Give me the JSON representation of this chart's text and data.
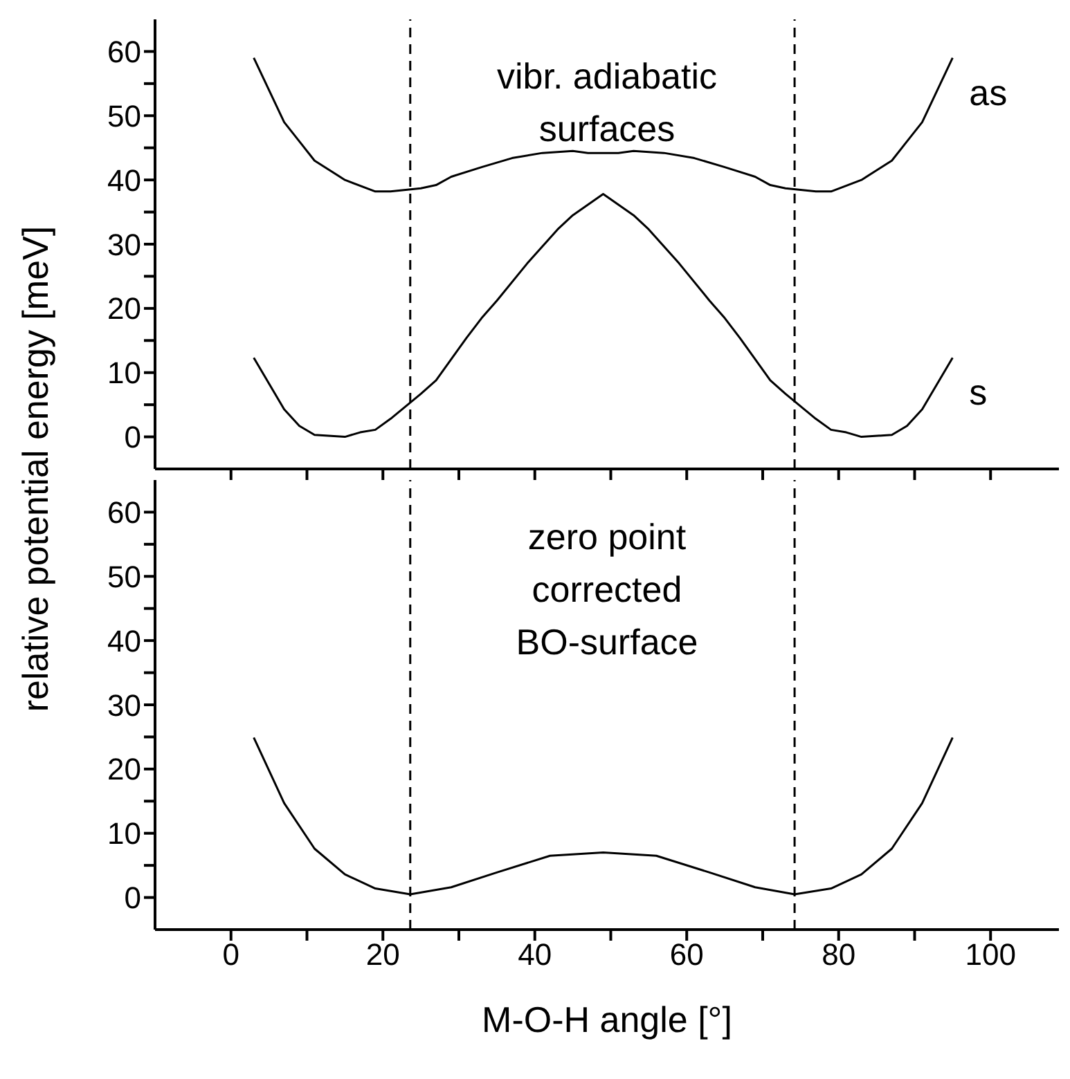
{
  "chart_data": [
    {
      "type": "line",
      "ylabel": "relative potential energy [meV]",
      "annotations": [
        "vibr. adiabatic surfaces"
      ],
      "xlim": [
        -10,
        109
      ],
      "ylim": [
        -5,
        65
      ],
      "xticks": [
        {
          "value": 0,
          "label": null
        },
        {
          "value": 10,
          "label": null
        },
        {
          "value": 20,
          "label": null
        },
        {
          "value": 30,
          "label": null
        },
        {
          "value": 40,
          "label": null
        },
        {
          "value": 50,
          "label": null
        },
        {
          "value": 60,
          "label": null
        },
        {
          "value": 70,
          "label": null
        },
        {
          "value": 80,
          "label": null
        },
        {
          "value": 90,
          "label": null
        },
        {
          "value": 100,
          "label": null
        }
      ],
      "yticks": [
        0,
        {
          "value": 5,
          "label": null
        },
        10,
        {
          "value": 15,
          "label": null
        },
        20,
        {
          "value": 25,
          "label": null
        },
        30,
        {
          "value": 35,
          "label": null
        },
        40,
        {
          "value": 45,
          "label": null
        },
        50,
        {
          "value": 55,
          "label": null
        },
        60
      ],
      "tick_labels": "y",
      "legend": false,
      "grid": false,
      "marker": "none",
      "line_style": "solid",
      "ref_lines": [
        {
          "axis": "x",
          "value": 23.6,
          "color": "#000000",
          "line_style": "dashed"
        },
        {
          "axis": "x",
          "value": 74.2,
          "color": "#000000",
          "line_style": "dashed"
        }
      ],
      "series": [
        {
          "name": "as",
          "color": "#000000",
          "x": [
            3,
            7,
            9,
            11,
            15,
            19,
            21,
            25,
            27,
            29,
            33,
            37,
            41,
            45,
            47,
            49,
            51,
            53,
            57,
            61,
            65,
            69,
            71,
            73,
            77,
            79,
            83,
            87,
            89,
            91,
            95
          ],
          "values": [
            59,
            49,
            46,
            43,
            40,
            38.2,
            38.2,
            38.7,
            39.2,
            40.5,
            42,
            43.4,
            44.2,
            44.5,
            44.2,
            44.2,
            44.2,
            44.5,
            44.2,
            43.4,
            42,
            40.5,
            39.2,
            38.7,
            38.2,
            38.2,
            40,
            43,
            46,
            49,
            59
          ]
        },
        {
          "name": "s",
          "color": "#000000",
          "x": [
            3,
            7,
            9,
            11,
            15,
            17,
            19,
            21,
            25,
            27,
            31,
            33,
            35,
            39,
            43,
            45,
            49,
            53,
            55,
            59,
            63,
            65,
            67,
            71,
            73,
            77,
            79,
            81,
            83,
            87,
            89,
            91,
            95
          ],
          "values": [
            12.3,
            4.3,
            1.7,
            0.3,
            0,
            0.7,
            1.1,
            2.8,
            6.7,
            8.8,
            15.4,
            18.5,
            21.2,
            27,
            32.3,
            34.5,
            37.8,
            34.5,
            32.3,
            27,
            21.2,
            18.5,
            15.4,
            8.8,
            6.7,
            2.8,
            1.1,
            0.7,
            0,
            0.3,
            1.7,
            4.3,
            12.3
          ]
        }
      ]
    },
    {
      "type": "line",
      "xlabel": "M-O-H angle [°]",
      "annotations": [
        "zero point corrected BO-surface"
      ],
      "xlim": [
        -10,
        109
      ],
      "ylim": [
        -5,
        65
      ],
      "xticks": [
        0,
        {
          "value": 10,
          "label": null
        },
        20,
        {
          "value": 30,
          "label": null
        },
        40,
        {
          "value": 50,
          "label": null
        },
        60,
        {
          "value": 70,
          "label": null
        },
        80,
        {
          "value": 90,
          "label": null
        },
        100
      ],
      "yticks": [
        0,
        {
          "value": 5,
          "label": null
        },
        10,
        {
          "value": 15,
          "label": null
        },
        20,
        {
          "value": 25,
          "label": null
        },
        30,
        {
          "value": 35,
          "label": null
        },
        40,
        {
          "value": 45,
          "label": null
        },
        50,
        {
          "value": 55,
          "label": null
        },
        60
      ],
      "legend": false,
      "grid": false,
      "marker": "none",
      "line_style": "solid",
      "ref_lines": [
        {
          "axis": "x",
          "value": 23.6,
          "color": "#000000",
          "line_style": "dashed"
        },
        {
          "axis": "x",
          "value": 74.2,
          "color": "#000000",
          "line_style": "dashed"
        }
      ],
      "series": [
        {
          "color": "#000000",
          "x": [
            3,
            7,
            11,
            15,
            19,
            23.6,
            29,
            35,
            42,
            49,
            56,
            63,
            69,
            74.2,
            79,
            83,
            87,
            91,
            95
          ],
          "values": [
            24.9,
            14.7,
            7.6,
            3.6,
            1.4,
            0.5,
            1.6,
            3.9,
            6.5,
            7,
            6.5,
            3.9,
            1.6,
            0.5,
            1.4,
            3.6,
            7.6,
            14.7,
            24.9
          ]
        }
      ]
    }
  ]
}
